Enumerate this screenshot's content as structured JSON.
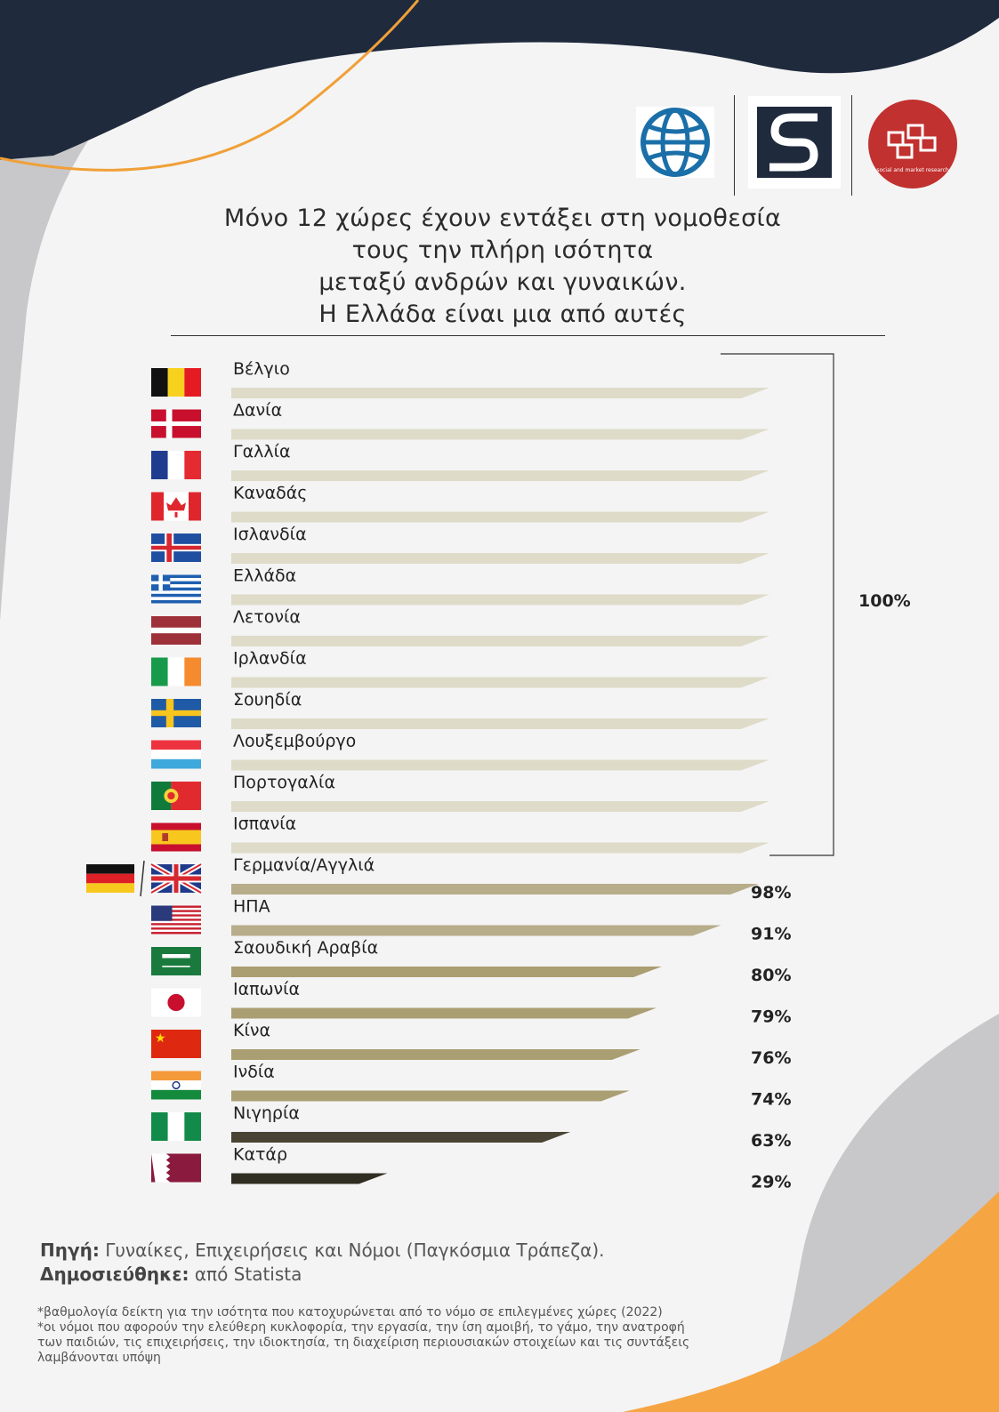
{
  "title_lines": [
    "Μόνο 12 χώρες έχουν εντάξει στη νομοθεσία",
    "τους την πλήρη ισότητα",
    "μεταξύ ανδρών και γυναικών.",
    "Η Ελλάδα είναι μια από αυτές"
  ],
  "logos": {
    "logo3_text": "social and market research"
  },
  "chart_data": {
    "type": "bar",
    "orientation": "horizontal",
    "xlim": [
      0,
      100
    ],
    "categories": [
      "Βέλγιο",
      "Δανία",
      "Γαλλία",
      "Καναδάς",
      "Ισλανδία",
      "Ελλάδα",
      "Λετονία",
      "Ιρλανδία",
      "Σουηδία",
      "Λουξεμβούργο",
      "Πορτογαλία",
      "Ισπανία",
      "Γερμανία/Αγγλιά",
      "ΗΠΑ",
      "Σαουδική Αραβία",
      "Ιαπωνία",
      "Κίνα",
      "Ινδία",
      "Νιγηρία",
      "Κατάρ"
    ],
    "values": [
      100,
      100,
      100,
      100,
      100,
      100,
      100,
      100,
      100,
      100,
      100,
      100,
      98,
      91,
      80,
      79,
      76,
      74,
      63,
      29
    ],
    "value_labels": [
      "",
      "",
      "",
      "",
      "",
      "",
      "",
      "",
      "",
      "",
      "",
      "",
      "98%",
      "91%",
      "80%",
      "79%",
      "76%",
      "74%",
      "63%",
      "29%"
    ],
    "group_label": "100%",
    "colors": {
      "full": "#dedbc9",
      "high": "#b7ad8a",
      "mid": "#aa9e73",
      "low": "#4a4434",
      "lowest": "#2f2c22"
    },
    "flags": [
      "belgium",
      "denmark",
      "france",
      "canada",
      "iceland",
      "greece",
      "latvia",
      "ireland",
      "sweden",
      "luxembourg",
      "portugal",
      "spain",
      "germany-uk",
      "usa",
      "saudi-arabia",
      "japan",
      "china",
      "india",
      "nigeria",
      "qatar"
    ]
  },
  "source": {
    "label": "Πηγή:",
    "text": " Γυναίκες, Επιχειρήσεις και Νόμοι (Παγκόσμια Τράπεζα).",
    "pub_label": "Δημοσιεύθηκε:",
    "pub_text": " από Statista"
  },
  "footnotes": [
    "*βαθμολογία δείκτη για την ισότητα που κατοχυρώνεται από το νόμο σε επιλεγμένες χώρες (2022)",
    "*οι νόμοι που αφορούν την ελεύθερη κυκλοφορία, την εργασία, την ίση αμοιβή, το γάμο, την ανατροφή των παιδιών, τις επιχειρήσεις, την ιδιοκτησία, τη διαχείριση περιουσιακών στοιχείων και τις συντάξεις λαμβάνονται υπόψη"
  ]
}
